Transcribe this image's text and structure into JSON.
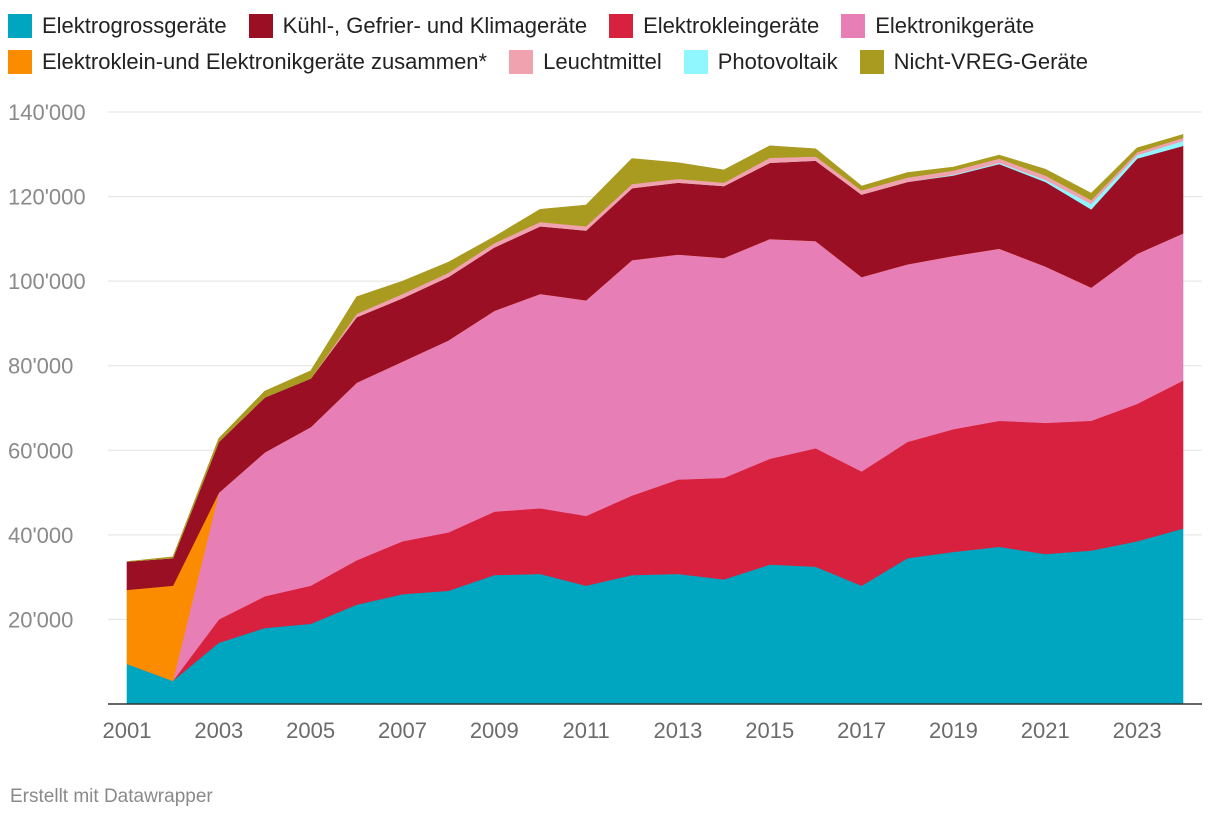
{
  "chart_data": {
    "type": "area",
    "stacked": true,
    "title": "",
    "xlabel": "",
    "ylabel": "",
    "ylim": [
      0,
      140000
    ],
    "yticks": [
      20000,
      40000,
      60000,
      80000,
      100000,
      120000,
      140000
    ],
    "ytick_labels": [
      "20'000",
      "40'000",
      "60'000",
      "80'000",
      "100'000",
      "120'000",
      "140'000"
    ],
    "x": [
      2001,
      2002,
      2003,
      2004,
      2005,
      2006,
      2007,
      2008,
      2009,
      2010,
      2011,
      2012,
      2013,
      2014,
      2015,
      2016,
      2017,
      2018,
      2019,
      2020,
      2021,
      2022,
      2023,
      2024
    ],
    "xticks": [
      2001,
      2003,
      2005,
      2007,
      2009,
      2011,
      2013,
      2015,
      2017,
      2019,
      2021,
      2023
    ],
    "xtick_labels": [
      "2001",
      "2003",
      "2005",
      "2007",
      "2009",
      "2011",
      "2013",
      "2015",
      "2017",
      "2019",
      "2021",
      "2023"
    ],
    "grid": true,
    "legend_position": "top",
    "series": [
      {
        "name": "Elektrogrossgeräte",
        "color": "#00a5bf",
        "values": [
          9500,
          5500,
          14500,
          18000,
          19000,
          23500,
          26000,
          26800,
          30500,
          30800,
          28000,
          30500,
          30800,
          29500,
          33000,
          32500,
          28000,
          34500,
          36000,
          37200,
          35500,
          36300,
          38500,
          41500
        ]
      },
      {
        "name": "Elektrokleingeräte",
        "color": "#d8213e",
        "values": [
          0,
          0,
          5500,
          7500,
          9000,
          10500,
          12500,
          13800,
          15000,
          15500,
          16500,
          18800,
          22300,
          24000,
          25000,
          28000,
          27000,
          27500,
          29000,
          29800,
          31000,
          30700,
          32500,
          35000
        ]
      },
      {
        "name": "Elektronikgeräte",
        "color": "#e77fb6",
        "values": [
          0,
          0,
          30000,
          34000,
          37500,
          42000,
          42500,
          45400,
          47500,
          50700,
          51000,
          55700,
          53200,
          52000,
          52000,
          49000,
          46000,
          42000,
          41000,
          40700,
          37000,
          31500,
          35500,
          34800
        ]
      },
      {
        "name": "Elektroklein-und Elektronikgeräte zusammen*",
        "color": "#fb8c00",
        "values": [
          17500,
          22500,
          0,
          0,
          0,
          0,
          0,
          0,
          0,
          0,
          0,
          0,
          0,
          0,
          0,
          0,
          0,
          0,
          0,
          0,
          0,
          0,
          0,
          0
        ]
      },
      {
        "name": "Kühl-, Gefrier- und Klimageräte",
        "color": "#9a0f24",
        "values": [
          6700,
          6500,
          12000,
          13000,
          11500,
          15500,
          15000,
          15000,
          15000,
          16000,
          16500,
          17000,
          17000,
          17000,
          18000,
          19000,
          19500,
          19500,
          19000,
          20000,
          20000,
          18500,
          22500,
          20700
        ]
      },
      {
        "name": "Photovoltaik",
        "color": "#90f6ff",
        "values": [
          0,
          0,
          0,
          0,
          0,
          0,
          0,
          0,
          0,
          0,
          0,
          0,
          0,
          0,
          0,
          0,
          0,
          0,
          200,
          300,
          500,
          1300,
          800,
          1200
        ]
      },
      {
        "name": "Leuchtmittel",
        "color": "#f0a2ae",
        "values": [
          0,
          0,
          0,
          0,
          0,
          800,
          1000,
          1000,
          1000,
          1000,
          1000,
          1000,
          900,
          800,
          1200,
          1000,
          1000,
          1000,
          1000,
          1000,
          1000,
          900,
          700,
          700
        ]
      },
      {
        "name": "Nicht-VREG-Geräte",
        "color": "#a89b20",
        "values": [
          0,
          300,
          800,
          1500,
          1800,
          4000,
          3000,
          2500,
          1500,
          3000,
          5000,
          6000,
          3800,
          3000,
          2800,
          1800,
          1000,
          1200,
          800,
          800,
          1500,
          1600,
          1000,
          800
        ]
      }
    ]
  },
  "legend": {
    "row1": [
      {
        "label": "Elektrogrossgeräte",
        "color": "#00a5bf"
      },
      {
        "label": "Kühl-, Gefrier- und Klimageräte",
        "color": "#9a0f24"
      },
      {
        "label": "Elektrokleingeräte",
        "color": "#d8213e"
      },
      {
        "label": "Elektronikgeräte",
        "color": "#e77fb6"
      }
    ],
    "row2": [
      {
        "label": "Elektroklein-und Elektronikgeräte zusammen*",
        "color": "#fb8c00"
      },
      {
        "label": "Leuchtmittel",
        "color": "#f0a2ae"
      },
      {
        "label": "Photovoltaik",
        "color": "#90f6ff"
      },
      {
        "label": "Nicht-VREG-Geräte",
        "color": "#a89b20"
      }
    ]
  },
  "credit": "Erstellt mit Datawrapper"
}
